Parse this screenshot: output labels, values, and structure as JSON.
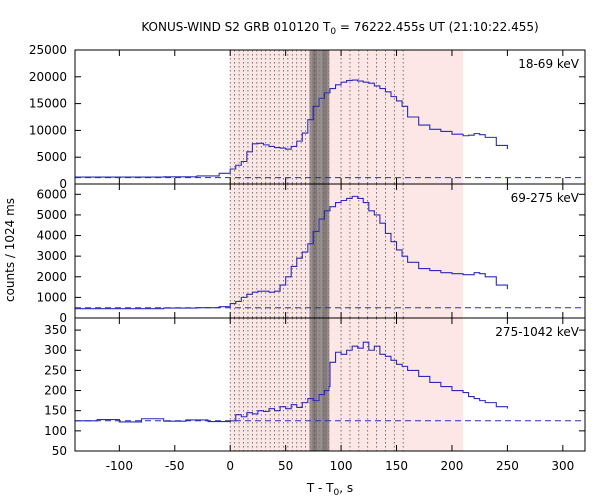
{
  "chart_data": {
    "type": "line",
    "title": {
      "prefix": "KONUS-WIND S2 GRB 010120 T",
      "sub": "0",
      "suffix": " = 76222.455s UT (21:10:22.455)"
    },
    "xlabel": {
      "prefix": "T - T",
      "sub": "0",
      "suffix": ", s"
    },
    "ylabel": "counts / 1024 ms",
    "xlim": [
      -140,
      320
    ],
    "xticks": [
      -100,
      -50,
      0,
      50,
      100,
      150,
      200,
      250,
      300
    ],
    "colors": {
      "line": "#2b2bb8",
      "shade": "#fde6e6",
      "grid": "#555555"
    },
    "shading": [
      {
        "from": 0,
        "to": 210
      }
    ],
    "vertical_lines": {
      "dotted": [
        0,
        4,
        8,
        12,
        16,
        20,
        24,
        28,
        32,
        36,
        40,
        44,
        48,
        52,
        56,
        60,
        64,
        68,
        72,
        76,
        80,
        84,
        88,
        100,
        108,
        116,
        124,
        132,
        140,
        148,
        156
      ],
      "dense_region": [
        72,
        89
      ]
    },
    "panels": [
      {
        "name": "18-69 keV",
        "ylim": [
          0,
          25000
        ],
        "yticks": [
          0,
          5000,
          10000,
          15000,
          20000,
          25000
        ],
        "background": 1200,
        "x": [
          -140,
          -100,
          -60,
          -30,
          -10,
          0,
          5,
          10,
          15,
          20,
          25,
          30,
          35,
          40,
          45,
          50,
          55,
          60,
          65,
          70,
          75,
          80,
          85,
          90,
          95,
          100,
          105,
          110,
          115,
          120,
          125,
          130,
          135,
          140,
          145,
          150,
          155,
          160,
          170,
          180,
          190,
          200,
          210,
          215,
          220,
          225,
          230,
          240,
          250
        ],
        "y": [
          1300,
          1300,
          1350,
          1500,
          2000,
          2800,
          3500,
          4200,
          6000,
          7500,
          7600,
          7300,
          7000,
          6800,
          6700,
          6500,
          7000,
          8000,
          9500,
          12000,
          14500,
          16000,
          17000,
          17800,
          18500,
          19000,
          19300,
          19400,
          19200,
          19000,
          18800,
          18300,
          17800,
          17200,
          16300,
          15500,
          14500,
          12500,
          11000,
          10200,
          9800,
          9300,
          9000,
          9100,
          9400,
          9200,
          8700,
          7200,
          6500
        ]
      },
      {
        "name": "69-275 keV",
        "ylim": [
          0,
          6500
        ],
        "yticks": [
          0,
          1000,
          2000,
          3000,
          4000,
          5000,
          6000
        ],
        "background": 500,
        "x": [
          -140,
          -100,
          -60,
          -30,
          -10,
          0,
          5,
          10,
          15,
          20,
          25,
          30,
          35,
          40,
          45,
          50,
          55,
          60,
          65,
          70,
          75,
          80,
          85,
          90,
          95,
          100,
          105,
          110,
          115,
          120,
          125,
          130,
          135,
          140,
          145,
          150,
          155,
          160,
          170,
          180,
          190,
          200,
          210,
          215,
          220,
          225,
          230,
          240,
          250
        ],
        "y": [
          450,
          450,
          480,
          500,
          550,
          700,
          800,
          1000,
          1150,
          1250,
          1300,
          1300,
          1250,
          1300,
          1600,
          2000,
          2500,
          2900,
          3200,
          3600,
          4200,
          4800,
          5200,
          5400,
          5600,
          5700,
          5800,
          5900,
          5800,
          5600,
          5200,
          5000,
          4600,
          4100,
          3700,
          3300,
          3000,
          2700,
          2400,
          2300,
          2200,
          2150,
          2100,
          2100,
          2200,
          2150,
          2000,
          1600,
          1400
        ]
      },
      {
        "name": "275-1042 keV",
        "ylim": [
          50,
          380
        ],
        "yticks": [
          50,
          100,
          150,
          200,
          250,
          300,
          350
        ],
        "background": 125,
        "x": [
          -140,
          -120,
          -100,
          -80,
          -60,
          -40,
          -20,
          0,
          5,
          10,
          15,
          20,
          25,
          30,
          35,
          40,
          45,
          50,
          55,
          60,
          65,
          70,
          75,
          80,
          85,
          89,
          90,
          95,
          100,
          105,
          110,
          115,
          120,
          125,
          130,
          135,
          140,
          145,
          150,
          155,
          160,
          170,
          180,
          190,
          200,
          210,
          215,
          220,
          225,
          230,
          240,
          250
        ],
        "y": [
          125,
          128,
          122,
          130,
          124,
          127,
          123,
          125,
          140,
          135,
          145,
          142,
          150,
          148,
          155,
          150,
          160,
          155,
          165,
          158,
          170,
          180,
          175,
          190,
          200,
          210,
          270,
          295,
          290,
          300,
          310,
          305,
          320,
          300,
          310,
          290,
          285,
          275,
          265,
          260,
          250,
          235,
          220,
          210,
          200,
          195,
          185,
          180,
          175,
          170,
          160,
          155
        ]
      }
    ]
  }
}
